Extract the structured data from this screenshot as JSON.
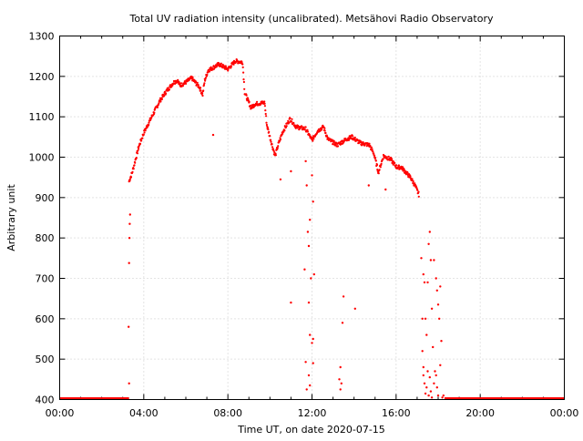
{
  "chart_data": {
    "type": "scatter",
    "title": "Total UV radiation intensity (uncalibrated). Metsähovi Radio Observatory",
    "xlabel": "Time UT, on date 2020-07-15",
    "ylabel": "Arbitrary unit",
    "xlim": [
      0,
      24
    ],
    "ylim": [
      400,
      1300
    ],
    "x_unit": "hours",
    "xticks": [
      0,
      4,
      8,
      12,
      16,
      20,
      24
    ],
    "xtick_labels": [
      "00:00",
      "04:00",
      "08:00",
      "12:00",
      "16:00",
      "20:00",
      "00:00"
    ],
    "yticks": [
      400,
      500,
      600,
      700,
      800,
      900,
      1000,
      1100,
      1200,
      1300
    ],
    "ytick_labels": [
      "400",
      "500",
      "600",
      "700",
      "800",
      "900",
      "1000",
      "1100",
      "1200",
      "1300"
    ],
    "grid": true,
    "marker_color": "#ff0000",
    "baseline_segments": [
      [
        0,
        3.3,
        400
      ],
      [
        18.3,
        24,
        400
      ]
    ],
    "main_series": [
      [
        3.3,
        940
      ],
      [
        3.45,
        962
      ],
      [
        3.77,
        1027
      ],
      [
        4.0,
        1060
      ],
      [
        4.33,
        1095
      ],
      [
        4.77,
        1140
      ],
      [
        5.1,
        1165
      ],
      [
        5.42,
        1185
      ],
      [
        5.6,
        1190
      ],
      [
        5.72,
        1178
      ],
      [
        5.9,
        1182
      ],
      [
        6.28,
        1196
      ],
      [
        6.5,
        1182
      ],
      [
        6.63,
        1175
      ],
      [
        6.8,
        1155
      ],
      [
        6.9,
        1190
      ],
      [
        7.06,
        1215
      ],
      [
        7.58,
        1230
      ],
      [
        8.0,
        1218
      ],
      [
        8.36,
        1238
      ],
      [
        8.7,
        1235
      ],
      [
        8.8,
        1160
      ],
      [
        9.1,
        1122
      ],
      [
        9.3,
        1132
      ],
      [
        9.75,
        1135
      ],
      [
        9.85,
        1080
      ],
      [
        10.1,
        1030
      ],
      [
        10.25,
        1003
      ],
      [
        10.4,
        1032
      ],
      [
        10.6,
        1062
      ],
      [
        10.96,
        1095
      ],
      [
        11.25,
        1075
      ],
      [
        11.7,
        1070
      ],
      [
        12.0,
        1042
      ],
      [
        12.26,
        1065
      ],
      [
        12.55,
        1075
      ],
      [
        12.75,
        1045
      ],
      [
        13.2,
        1030
      ],
      [
        13.65,
        1045
      ],
      [
        13.9,
        1050
      ],
      [
        14.3,
        1035
      ],
      [
        14.73,
        1030
      ],
      [
        14.95,
        1008
      ],
      [
        15.16,
        962
      ],
      [
        15.4,
        1003
      ],
      [
        15.73,
        995
      ],
      [
        16.03,
        975
      ],
      [
        16.25,
        975
      ],
      [
        16.68,
        950
      ],
      [
        16.9,
        930
      ],
      [
        17.1,
        905
      ]
    ],
    "outliers": [
      [
        3.3,
        440
      ],
      [
        3.28,
        580
      ],
      [
        3.3,
        738
      ],
      [
        3.32,
        800
      ],
      [
        3.33,
        835
      ],
      [
        3.35,
        858
      ],
      [
        7.3,
        1055
      ],
      [
        11.0,
        640
      ],
      [
        11.0,
        965
      ],
      [
        10.5,
        945
      ],
      [
        11.65,
        722
      ],
      [
        11.7,
        990
      ],
      [
        11.75,
        930
      ],
      [
        11.8,
        815
      ],
      [
        11.85,
        780
      ],
      [
        11.85,
        640
      ],
      [
        11.9,
        845
      ],
      [
        11.95,
        700
      ],
      [
        12.0,
        955
      ],
      [
        12.05,
        890
      ],
      [
        12.1,
        710
      ],
      [
        11.9,
        560
      ],
      [
        12.0,
        540
      ],
      [
        12.05,
        550
      ],
      [
        11.7,
        493
      ],
      [
        11.75,
        425
      ],
      [
        11.85,
        460
      ],
      [
        12.05,
        490
      ],
      [
        11.9,
        435
      ],
      [
        13.35,
        480
      ],
      [
        13.3,
        450
      ],
      [
        13.4,
        440
      ],
      [
        13.35,
        425
      ],
      [
        13.45,
        590
      ],
      [
        13.5,
        655
      ],
      [
        14.05,
        625
      ],
      [
        14.7,
        930
      ],
      [
        15.5,
        920
      ],
      [
        17.2,
        750
      ],
      [
        17.25,
        600
      ],
      [
        17.3,
        710
      ],
      [
        17.35,
        690
      ],
      [
        17.4,
        600
      ],
      [
        17.45,
        560
      ],
      [
        17.5,
        690
      ],
      [
        17.6,
        815
      ],
      [
        17.55,
        785
      ],
      [
        17.65,
        745
      ],
      [
        17.7,
        625
      ],
      [
        17.75,
        530
      ],
      [
        17.8,
        745
      ],
      [
        17.85,
        470
      ],
      [
        17.9,
        700
      ],
      [
        17.95,
        670
      ],
      [
        18.0,
        635
      ],
      [
        18.05,
        600
      ],
      [
        18.1,
        680
      ],
      [
        18.15,
        545
      ],
      [
        17.3,
        480
      ],
      [
        17.35,
        440
      ],
      [
        17.45,
        430
      ],
      [
        17.55,
        410
      ],
      [
        17.65,
        420
      ],
      [
        17.8,
        440
      ],
      [
        17.9,
        460
      ],
      [
        18.0,
        410
      ],
      [
        18.1,
        485
      ],
      [
        17.5,
        470
      ],
      [
        17.6,
        455
      ],
      [
        17.4,
        415
      ],
      [
        18.2,
        405
      ],
      [
        17.25,
        520
      ],
      [
        17.3,
        460
      ],
      [
        17.7,
        405
      ],
      [
        17.95,
        430
      ],
      [
        18.25,
        410
      ]
    ]
  }
}
